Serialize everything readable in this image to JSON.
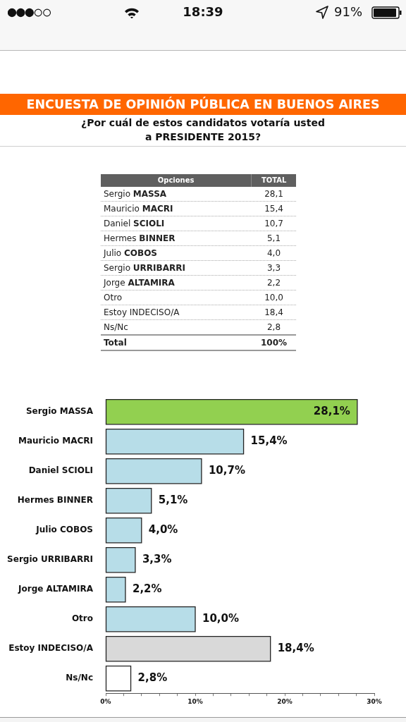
{
  "chart_data": [
    {
      "type": "other",
      "annotations": [
        "18:39",
        "91%"
      ]
    },
    {
      "type": "other",
      "title": "ENCUESTA DE OPINIÓN PÚBLICA EN BUENOS AIRES",
      "subtitle": "¿Por cuál de estos candidatos votaría usted\na PRESIDENTE 2015?",
      "annotations": [
        "Opciones",
        "TOTAL",
        "Sergio MASSA",
        "28,1",
        "Mauricio MACRI",
        "15,4",
        "Daniel SCIOLI",
        "10,7",
        "Hermes BINNER",
        "5,1",
        "Julio COBOS",
        "4,0",
        "Sergio URRIBARRI",
        "3,3",
        "Jorge ALTAMIRA",
        "2,2",
        "Otro",
        "10,0",
        "Estoy INDECISO/A",
        "18,4",
        "Ns/Nc",
        "2,8",
        "Total",
        "100%"
      ]
    },
    {
      "type": "bar",
      "orientation": "horizontal",
      "categories": [
        "Sergio MASSA",
        "Mauricio MACRI",
        "Daniel SCIOLI",
        "Hermes BINNER",
        "Julio COBOS",
        "Sergio URRIBARRI",
        "Jorge ALTAMIRA",
        "Otro",
        "Estoy INDECISO/A",
        "Ns/Nc"
      ],
      "values": [
        28.1,
        15.4,
        10.7,
        5.1,
        4.0,
        3.3,
        2.2,
        10.0,
        18.4,
        2.8
      ],
      "colors": [
        "#92d050",
        "#b7dde8",
        "#b7dde8",
        "#b7dde8",
        "#b7dde8",
        "#b7dde8",
        "#b7dde8",
        "#b7dde8",
        "#d9d9d9",
        "#ffffff"
      ],
      "value_labels": [
        "28,1%",
        "15,4%",
        "10,7%",
        "5,1%",
        "4,0%",
        "3,3%",
        "2,2%",
        "10,0%",
        "18,4%",
        "2,8%"
      ],
      "xlim": [
        0,
        30
      ],
      "xticks": [
        {
          "value": 0,
          "label": "0%"
        },
        {
          "value": 2,
          "label": null
        },
        {
          "value": 4,
          "label": null
        },
        {
          "value": 6,
          "label": null
        },
        {
          "value": 8,
          "label": null
        },
        {
          "value": 10,
          "label": "10%"
        },
        {
          "value": 12,
          "label": null
        },
        {
          "value": 14,
          "label": null
        },
        {
          "value": 16,
          "label": null
        },
        {
          "value": 18,
          "label": null
        },
        {
          "value": 20,
          "label": "20%"
        },
        {
          "value": 22,
          "label": null
        },
        {
          "value": 24,
          "label": null
        },
        {
          "value": 26,
          "label": null
        },
        {
          "value": 28,
          "label": null
        },
        {
          "value": 30,
          "label": "30%"
        }
      ],
      "grid": false,
      "legend": false
    }
  ]
}
